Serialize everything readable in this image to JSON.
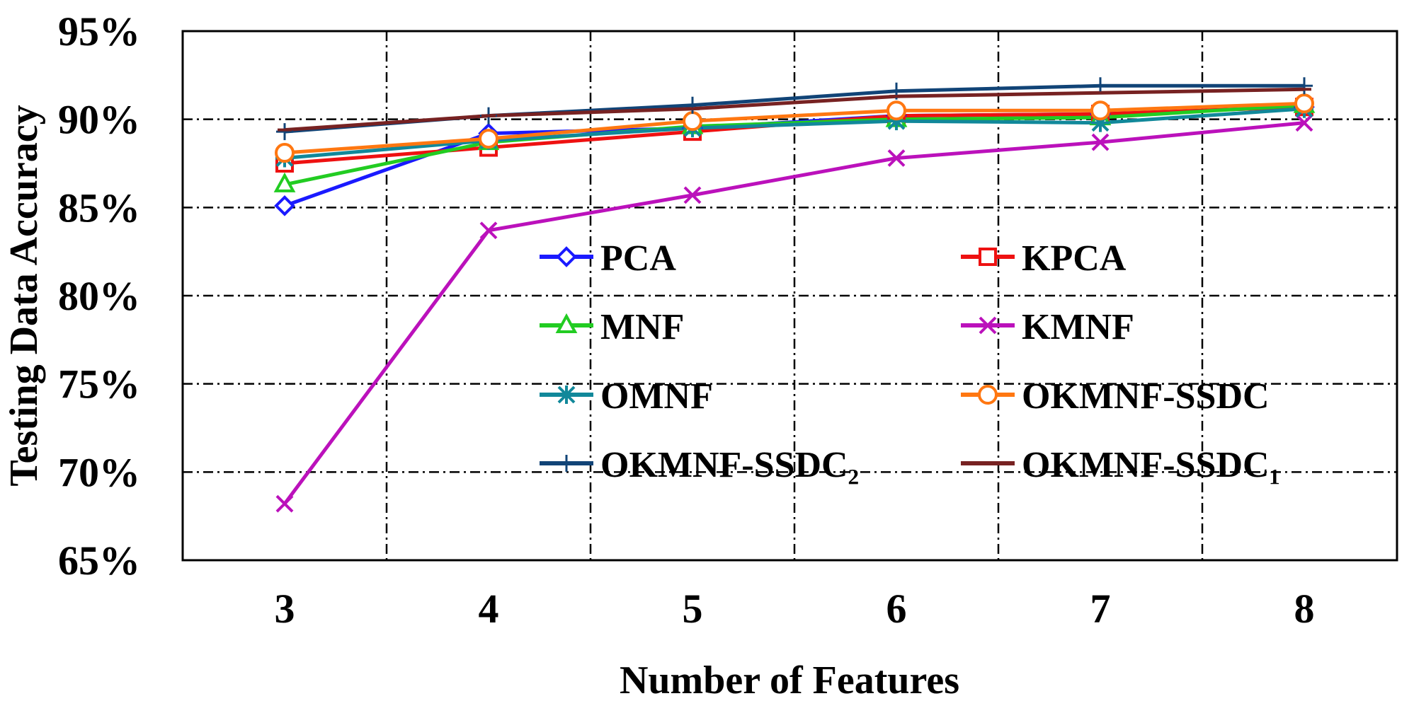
{
  "chart_data": {
    "type": "line",
    "title": "",
    "xlabel": "Number of Features",
    "ylabel": "Testing Data Accuracy",
    "x": [
      3,
      4,
      5,
      6,
      7,
      8
    ],
    "x_tick_labels": [
      "3",
      "4",
      "5",
      "6",
      "7",
      "8"
    ],
    "ylim": [
      0.65,
      0.95
    ],
    "y_ticks": [
      0.65,
      0.7,
      0.75,
      0.8,
      0.85,
      0.9,
      0.95
    ],
    "y_tick_labels": [
      "65%",
      "70%",
      "75%",
      "80%",
      "85%",
      "90%",
      "95%"
    ],
    "grid": "dash-dot",
    "legend": "inside, lower-center, 2 columns",
    "series": [
      {
        "name": "PCA",
        "color": "#1a1aff",
        "marker": "diamond",
        "values": [
          0.851,
          0.892,
          0.895,
          0.902,
          0.903,
          0.907
        ]
      },
      {
        "name": "KPCA",
        "color": "#ee1111",
        "marker": "square",
        "values": [
          0.875,
          0.884,
          0.893,
          0.902,
          0.903,
          0.907
        ]
      },
      {
        "name": "MNF",
        "color": "#22cc22",
        "marker": "triangle",
        "values": [
          0.863,
          0.887,
          0.896,
          0.9,
          0.901,
          0.908
        ]
      },
      {
        "name": "KMNF",
        "color": "#bb11bb",
        "marker": "x",
        "values": [
          0.682,
          0.837,
          0.857,
          0.878,
          0.887,
          0.898
        ]
      },
      {
        "name": "OMNF",
        "color": "#11889a",
        "marker": "asterisk",
        "values": [
          0.878,
          0.888,
          0.895,
          0.899,
          0.898,
          0.906
        ]
      },
      {
        "name": "OKMNF-SSDC",
        "color": "#ff7711",
        "marker": "circle",
        "values": [
          0.881,
          0.889,
          0.899,
          0.905,
          0.905,
          0.909
        ]
      },
      {
        "name": "OKMNF-SSDC₂",
        "color": "#114477",
        "marker": "plus",
        "values": [
          0.893,
          0.902,
          0.908,
          0.916,
          0.919,
          0.919
        ]
      },
      {
        "name": "OKMNF-SSDC₁",
        "color": "#772222",
        "marker": "dash",
        "values": [
          0.894,
          0.902,
          0.906,
          0.913,
          0.915,
          0.917
        ]
      }
    ]
  }
}
